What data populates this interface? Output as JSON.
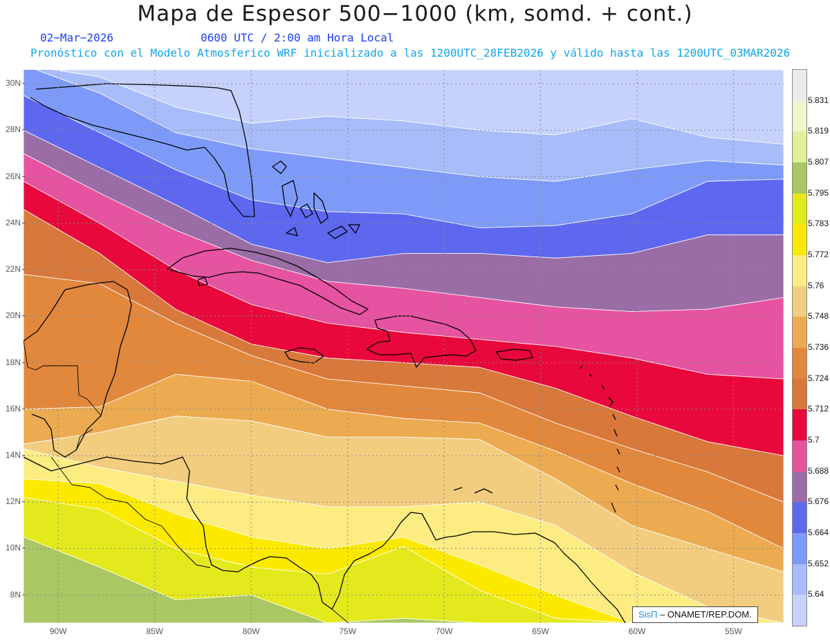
{
  "header": {
    "title": "Mapa de Espesor 500−1000 (km, somd. + cont.)",
    "date": "02−Mar−2026",
    "time": "0600 UTC / 2:00 am Hora Local",
    "forecast": "Pronóstico con el Modelo Atmosferico WRF inicializado a las 1200UTC_28FEB2026 y válido hasta las  1200UTC_03MAR2026"
  },
  "axes": {
    "lat_labels": [
      "30N",
      "28N",
      "26N",
      "24N",
      "22N",
      "20N",
      "18N",
      "16N",
      "14N",
      "12N",
      "10N",
      "8N"
    ],
    "lon_labels": [
      "90W",
      "85W",
      "80W",
      "75W",
      "70W",
      "65W",
      "60W",
      "55W"
    ]
  },
  "credit": {
    "brand": "SisΠ",
    "text": "– ONAMET/REP.DOM."
  },
  "legend": {
    "labels": [
      "5.831",
      "5.819",
      "5.807",
      "5.795",
      "5.783",
      "5.772",
      "5.76",
      "5.748",
      "5.736",
      "5.724",
      "5.712",
      "5.7",
      "5.688",
      "5.676",
      "5.664",
      "5.652",
      "5.64"
    ],
    "colors": [
      "#ebebeb",
      "#f1f5c9",
      "#e3ef9a",
      "#a9c763",
      "#e4e91d",
      "#fbea00",
      "#fcec82",
      "#f2cd7f",
      "#ecab50",
      "#e2883c",
      "#d8783a",
      "#e8083b",
      "#e653a0",
      "#9a6da6",
      "#5e68ef",
      "#7e9af9",
      "#a8bcf9",
      "#c6d2fb"
    ]
  },
  "map": {
    "lat_range": [
      6.8,
      30.6
    ],
    "lon_range": [
      -91.8,
      -52.4
    ],
    "band_colors": [
      "#c6d2fb",
      "#a8bcf9",
      "#7e9af9",
      "#5e68ef",
      "#9a6da6",
      "#e653a0",
      "#e8083b",
      "#d8783a",
      "#e2883c",
      "#ecab50",
      "#f2cd7f",
      "#fcec82",
      "#fbea00",
      "#e4e91d",
      "#a9c763",
      "#e3ef9a"
    ],
    "band_boundaries_lat": [
      [
        30.8,
        30.3,
        29.0,
        28.3,
        28.6,
        28.4,
        28.0,
        27.8,
        28.5,
        27.7,
        27.4
      ],
      [
        30.8,
        29.6,
        27.9,
        27.2,
        26.8,
        26.4,
        26.0,
        25.8,
        26.3,
        26.7,
        26.5
      ],
      [
        29.5,
        27.9,
        26.3,
        25.0,
        24.5,
        24.4,
        23.8,
        23.9,
        24.4,
        25.8,
        25.9
      ],
      [
        28.0,
        26.4,
        24.8,
        23.1,
        22.3,
        22.7,
        22.7,
        22.5,
        22.7,
        23.5,
        23.5
      ],
      [
        27.0,
        25.3,
        23.7,
        22.4,
        21.5,
        21.2,
        20.8,
        20.4,
        20.2,
        20.3,
        20.8
      ],
      [
        25.8,
        24.0,
        22.0,
        20.5,
        19.7,
        19.3,
        19.0,
        18.7,
        18.2,
        17.5,
        17.3
      ],
      [
        24.6,
        22.7,
        20.3,
        18.8,
        18.2,
        18.0,
        17.8,
        16.9,
        15.7,
        14.6,
        14.0
      ],
      [
        21.8,
        21.4,
        19.7,
        18.3,
        17.3,
        17.0,
        16.7,
        15.4,
        14.3,
        13.3,
        12.0
      ],
      [
        16.0,
        16.1,
        17.5,
        17.2,
        16.0,
        15.6,
        15.4,
        14.2,
        12.8,
        11.6,
        10.0
      ],
      [
        14.5,
        15.0,
        15.7,
        15.5,
        14.8,
        14.8,
        14.7,
        13.0,
        11.0,
        10.0,
        9.0
      ],
      [
        14.3,
        13.5,
        12.9,
        12.3,
        11.8,
        11.8,
        12.0,
        11.0,
        9.0,
        7.5,
        6.8
      ],
      [
        13.0,
        12.8,
        11.5,
        10.5,
        10.0,
        10.5,
        9.3,
        8.0,
        6.8,
        6.8,
        6.8
      ],
      [
        12.2,
        11.7,
        10.0,
        9.2,
        8.9,
        10.1,
        8.2,
        7.0,
        6.8,
        6.8,
        6.8
      ],
      [
        10.5,
        9.2,
        7.8,
        8.0,
        6.8,
        7.0,
        6.8,
        6.8,
        6.8,
        6.8,
        6.8
      ],
      [
        6.8,
        6.8,
        6.8,
        6.8,
        6.8,
        6.8,
        6.8,
        6.8,
        6.8,
        6.8,
        6.8
      ]
    ]
  }
}
